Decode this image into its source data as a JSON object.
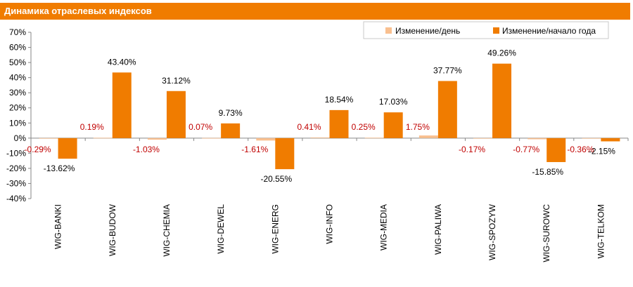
{
  "header": {
    "title": "Динамика отраслевых индексов"
  },
  "colors": {
    "day": "#F9C090",
    "year": "#F07C00",
    "day_label": "#C00000",
    "header_bg": "#F07C00"
  },
  "chart_data": {
    "type": "bar",
    "title": "Динамика отраслевых индексов",
    "categories": [
      "WIG-BANKI",
      "WIG-BUDOW",
      "WIG-CHEMIA",
      "WIG-DEWEL",
      "WIG-ENERG",
      "WIG-INFO",
      "WIG-MEDIA",
      "WIG-PALIWA",
      "WIG-SPOZYW",
      "WIG-SUROWC",
      "WIG-TELKOM"
    ],
    "series": [
      {
        "name": "Изменение/день",
        "values": [
          -0.29,
          0.19,
          -1.03,
          0.07,
          -1.61,
          0.41,
          0.25,
          1.75,
          -0.17,
          -0.77,
          -0.36
        ],
        "labels": [
          "-0.29%",
          "0.19%",
          "-1.03%",
          "0.07%",
          "-1.61%",
          "0.41%",
          "0.25%",
          "1.75%",
          "-0.17%",
          "-0.77%",
          "-0.36%"
        ]
      },
      {
        "name": "Изменение/начало года",
        "values": [
          -13.62,
          43.4,
          31.12,
          9.73,
          -20.55,
          18.54,
          17.03,
          37.77,
          49.26,
          -15.85,
          -2.15
        ],
        "labels": [
          "-13.62%",
          "43.40%",
          "31.12%",
          "9.73%",
          "-20.55%",
          "18.54%",
          "17.03%",
          "37.77%",
          "49.26%",
          "-15.85%",
          "-2.15%"
        ]
      }
    ],
    "ylim": [
      -40,
      70
    ],
    "yticks": [
      "-40%",
      "-30%",
      "-20%",
      "-10%",
      "0%",
      "10%",
      "20%",
      "30%",
      "40%",
      "50%",
      "60%",
      "70%"
    ],
    "grid": false,
    "legend": "top-right"
  }
}
